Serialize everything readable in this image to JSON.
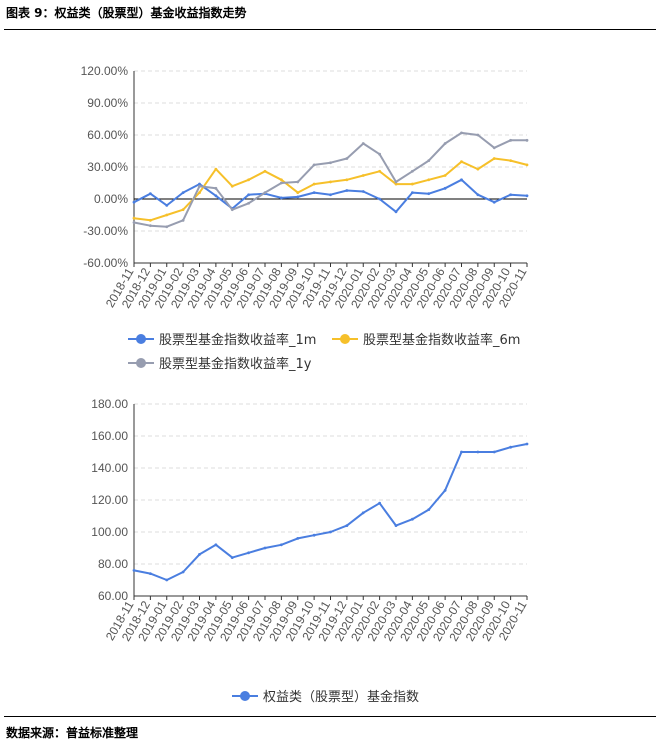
{
  "figure": {
    "title": "图表 9：权益类（股票型）基金收益指数走势",
    "source": "数据来源：普益标准整理"
  },
  "colors": {
    "s1m": "#4a7ee0",
    "s6m": "#f6c02a",
    "s1y": "#979db0",
    "index": "#4a7ee0",
    "grid": "#dcdcdc",
    "axis": "#333333",
    "zero_line": "#000000"
  },
  "chart_data": [
    {
      "type": "line",
      "x_tick_labels": [
        "2018-11",
        "2018-12",
        "2019-01",
        "2019-02",
        "2019-03",
        "2019-04",
        "2019-05",
        "2019-06",
        "2019-07",
        "2019-08",
        "2019-09",
        "2019-10",
        "2019-11",
        "2019-12",
        "2020-01",
        "2020-02",
        "2020-03",
        "2020-04",
        "2020-05",
        "2020-06",
        "2020-07",
        "2020-08",
        "2020-09",
        "2020-10",
        "2020-11"
      ],
      "y_tick_labels": [
        "120.00%",
        "90.00%",
        "60.00%",
        "30.00%",
        "0.00%",
        "-30.00%",
        "-60.00%"
      ],
      "ylim": [
        -60,
        120
      ],
      "grid": true,
      "legend_position": "bottom",
      "x": [
        "2018-11",
        "2018-12",
        "2019-01",
        "2019-02",
        "2019-03",
        "2019-04",
        "2019-05",
        "2019-06",
        "2019-07",
        "2019-08",
        "2019-09",
        "2019-10",
        "2019-11",
        "2019-12",
        "2020-01",
        "2020-02",
        "2020-03",
        "2020-04",
        "2020-05",
        "2020-06",
        "2020-07",
        "2020-08",
        "2020-09",
        "2020-10",
        "2020-11"
      ],
      "series": [
        {
          "name": "股票型基金指数收益率_1m",
          "color_key": "s1m",
          "values": [
            -3,
            5,
            -6,
            6,
            14,
            3,
            -9,
            4,
            5,
            1,
            2,
            6,
            4,
            8,
            7,
            0,
            -12,
            6,
            5,
            10,
            18,
            4,
            -3,
            4,
            3
          ]
        },
        {
          "name": "股票型基金指数收益率_6m",
          "color_key": "s6m",
          "values": [
            -18,
            -20,
            -15,
            -10,
            6,
            28,
            12,
            18,
            26,
            18,
            6,
            14,
            16,
            18,
            22,
            26,
            14,
            14,
            18,
            22,
            35,
            28,
            38,
            36,
            32
          ]
        },
        {
          "name": "股票型基金指数收益率_1y",
          "color_key": "s1y",
          "values": [
            -22,
            -25,
            -26,
            -20,
            12,
            10,
            -10,
            -4,
            6,
            15,
            16,
            32,
            34,
            38,
            52,
            42,
            16,
            26,
            36,
            52,
            62,
            60,
            48,
            55,
            55
          ]
        }
      ]
    },
    {
      "type": "line",
      "x_tick_labels": [
        "2018-11",
        "2018-12",
        "2019-01",
        "2019-02",
        "2019-03",
        "2019-04",
        "2019-05",
        "2019-06",
        "2019-07",
        "2019-08",
        "2019-09",
        "2019-10",
        "2019-11",
        "2019-12",
        "2020-01",
        "2020-02",
        "2020-03",
        "2020-04",
        "2020-05",
        "2020-06",
        "2020-07",
        "2020-08",
        "2020-09",
        "2020-10",
        "2020-11"
      ],
      "y_tick_labels": [
        "180.00",
        "160.00",
        "140.00",
        "120.00",
        "100.00",
        "80.00",
        "60.00"
      ],
      "ylim": [
        60,
        180
      ],
      "grid": true,
      "legend_position": "bottom",
      "x": [
        "2018-11",
        "2018-12",
        "2019-01",
        "2019-02",
        "2019-03",
        "2019-04",
        "2019-05",
        "2019-06",
        "2019-07",
        "2019-08",
        "2019-09",
        "2019-10",
        "2019-11",
        "2019-12",
        "2020-01",
        "2020-02",
        "2020-03",
        "2020-04",
        "2020-05",
        "2020-06",
        "2020-07",
        "2020-08",
        "2020-09",
        "2020-10",
        "2020-11"
      ],
      "series": [
        {
          "name": "权益类（股票型）基金指数",
          "color_key": "index",
          "values": [
            76,
            74,
            70,
            75,
            86,
            92,
            84,
            87,
            90,
            92,
            96,
            98,
            100,
            104,
            112,
            118,
            104,
            108,
            114,
            126,
            150,
            150,
            150,
            153,
            155
          ]
        }
      ]
    }
  ]
}
